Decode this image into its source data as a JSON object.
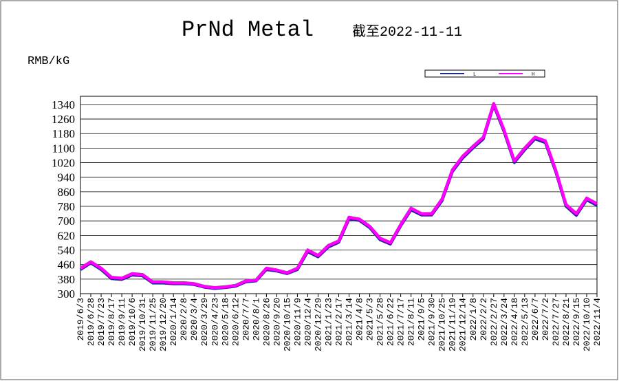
{
  "chart_data": {
    "type": "line",
    "title": "PrNd Metal",
    "subtitle": "截至2022-11-11",
    "y_label": "RMB/kG",
    "categories": [
      "2019/6/3",
      "2019/6/28",
      "2019/7/23",
      "2019/8/17",
      "2019/9/11",
      "2019/10/6",
      "2019/10/31",
      "2019/11/25",
      "2019/12/20",
      "2020/1/14",
      "2020/2/8",
      "2020/3/4",
      "2020/3/29",
      "2020/4/23",
      "2020/5/18",
      "2020/6/12",
      "2020/7/7",
      "2020/8/1",
      "2020/8/26",
      "2020/9/20",
      "2020/10/15",
      "2020/11/9",
      "2020/12/4",
      "2020/12/29",
      "2021/1/23",
      "2021/2/17",
      "2021/3/14",
      "2021/4/8",
      "2021/5/3",
      "2021/5/28",
      "2021/6/22",
      "2021/7/17",
      "2021/8/11",
      "2021/9/5",
      "2021/9/30",
      "2021/10/25",
      "2021/11/19",
      "2021/12/14",
      "2022/1/8",
      "2022/2/2",
      "2022/2/27",
      "2022/3/24",
      "2022/4/18",
      "2022/5/13",
      "2022/6/7",
      "2022/7/2",
      "2022/7/27",
      "2022/8/21",
      "2022/9/15",
      "2022/10/10",
      "2022/11/4"
    ],
    "series": [
      {
        "name": "L",
        "color": "#1c2a8c",
        "values": [
          432,
          468,
          432,
          382,
          378,
          402,
          398,
          358,
          358,
          354,
          354,
          350,
          335,
          328,
          333,
          340,
          364,
          370,
          432,
          424,
          410,
          432,
          530,
          502,
          556,
          582,
          710,
          702,
          662,
          596,
          572,
          672,
          760,
          732,
          732,
          810,
          970,
          1045,
          1100,
          1150,
          1335,
          1190,
          1020,
          1090,
          1150,
          1130,
          970,
          780,
          730,
          815,
          785
        ]
      },
      {
        "name": "H",
        "color": "#ff00ff",
        "values": [
          440,
          475,
          440,
          390,
          385,
          410,
          405,
          365,
          365,
          360,
          360,
          355,
          340,
          333,
          338,
          345,
          370,
          375,
          440,
          430,
          415,
          440,
          540,
          510,
          565,
          590,
          720,
          710,
          670,
          605,
          580,
          680,
          770,
          740,
          740,
          820,
          980,
          1055,
          1110,
          1160,
          1345,
          1200,
          1030,
          1100,
          1160,
          1140,
          980,
          790,
          740,
          825,
          795
        ]
      }
    ],
    "ylim": [
      300,
      1385
    ],
    "yticks": [
      300,
      380,
      460,
      540,
      620,
      700,
      780,
      860,
      940,
      1020,
      1100,
      1180,
      1260,
      1340
    ],
    "grid": true
  }
}
